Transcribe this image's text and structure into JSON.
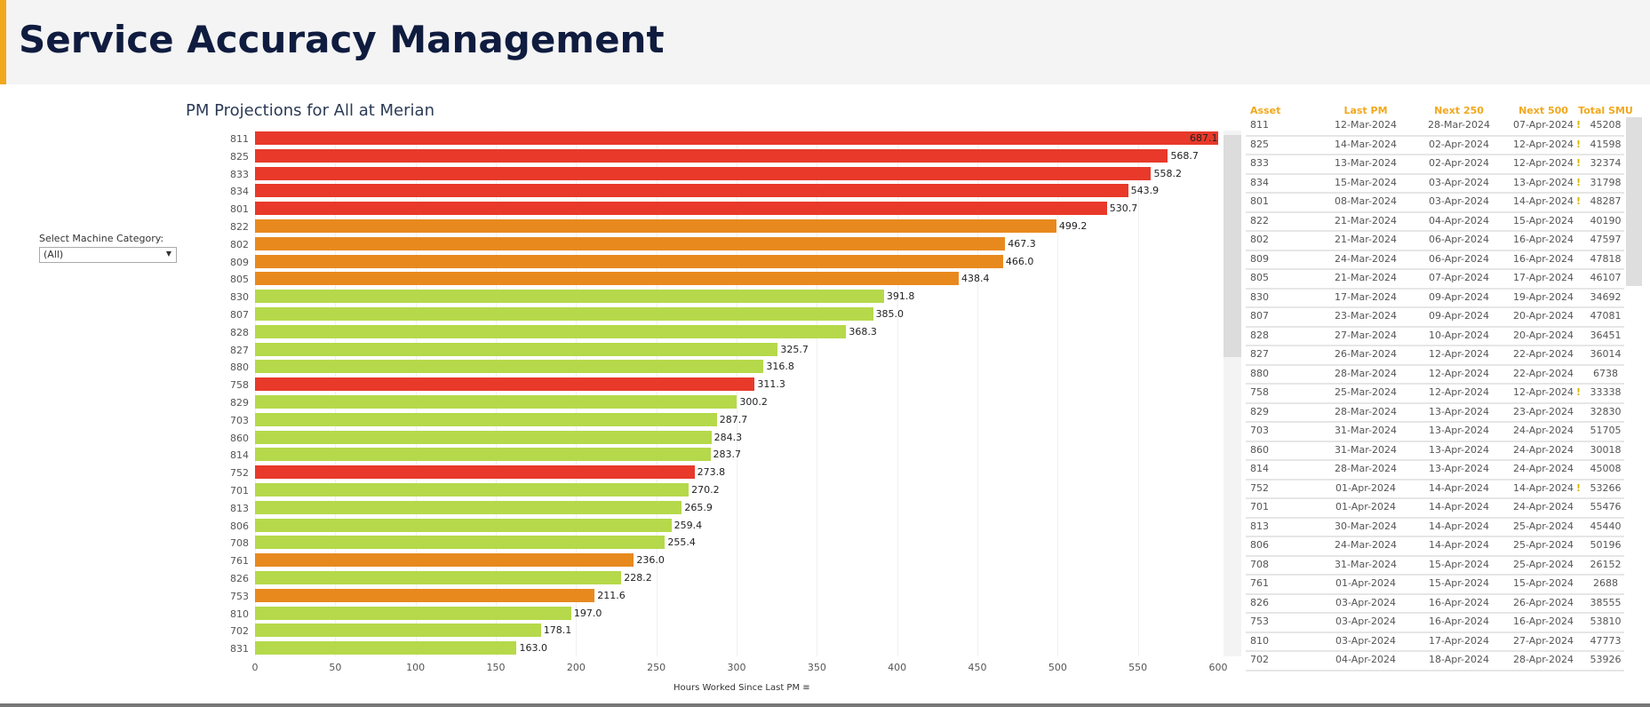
{
  "header": {
    "title": "Service Accuracy Management",
    "accent": "#f2a81d"
  },
  "filter": {
    "label": "Select Machine Category:",
    "value": "(All)"
  },
  "chart_data": {
    "type": "bar",
    "orientation": "horizontal",
    "title": "PM Projections for All at Merian",
    "xlabel": "Hours Worked Since Last PM",
    "xlim": [
      0,
      600
    ],
    "xticks": [
      "0",
      "50",
      "100",
      "150",
      "200",
      "250",
      "300",
      "350",
      "400",
      "450",
      "500",
      "550",
      "600"
    ],
    "colors": {
      "red": "#e8392a",
      "orange": "#e8891e",
      "green": "#b5d94a"
    },
    "categories": [
      "811",
      "825",
      "833",
      "834",
      "801",
      "822",
      "802",
      "809",
      "805",
      "830",
      "807",
      "828",
      "827",
      "880",
      "758",
      "829",
      "703",
      "860",
      "814",
      "752",
      "701",
      "813",
      "806",
      "708",
      "761",
      "826",
      "753",
      "810",
      "702",
      "831"
    ],
    "values": [
      687.1,
      568.7,
      558.2,
      543.9,
      530.7,
      499.2,
      467.3,
      466.0,
      438.4,
      391.8,
      385.0,
      368.3,
      325.7,
      316.8,
      311.3,
      300.2,
      287.7,
      284.3,
      283.7,
      273.8,
      270.2,
      265.9,
      259.4,
      255.4,
      236.0,
      228.2,
      211.6,
      197.0,
      178.1,
      163.0
    ],
    "value_labels": [
      "687.1",
      "568.7",
      "558.2",
      "543.9",
      "530.7",
      "499.2",
      "467.3",
      "466.0",
      "438.4",
      "391.8",
      "385.0",
      "368.3",
      "325.7",
      "316.8",
      "311.3",
      "300.2",
      "287.7",
      "284.3",
      "283.7",
      "273.8",
      "270.2",
      "265.9",
      "259.4",
      "255.4",
      "236.0",
      "228.2",
      "211.6",
      "197.0",
      "178.1",
      "163.0"
    ],
    "bar_colors": [
      "red",
      "red",
      "red",
      "red",
      "red",
      "orange",
      "orange",
      "orange",
      "orange",
      "green",
      "green",
      "green",
      "green",
      "green",
      "red",
      "green",
      "green",
      "green",
      "green",
      "red",
      "green",
      "green",
      "green",
      "green",
      "orange",
      "green",
      "orange",
      "green",
      "green",
      "green"
    ]
  },
  "table": {
    "headers": [
      "Asset",
      "Last PM",
      "Next 250",
      "Next 500",
      "Total SMU"
    ],
    "warning_icon": "exclamation-icon",
    "rows": [
      {
        "asset": "811",
        "last": "12-Mar-2024",
        "n250": "28-Mar-2024",
        "n500": "07-Apr-2024",
        "smu": "45208",
        "warn": "!"
      },
      {
        "asset": "825",
        "last": "14-Mar-2024",
        "n250": "02-Apr-2024",
        "n500": "12-Apr-2024",
        "smu": "41598",
        "warn": "!"
      },
      {
        "asset": "833",
        "last": "13-Mar-2024",
        "n250": "02-Apr-2024",
        "n500": "12-Apr-2024",
        "smu": "32374",
        "warn": "!"
      },
      {
        "asset": "834",
        "last": "15-Mar-2024",
        "n250": "03-Apr-2024",
        "n500": "13-Apr-2024",
        "smu": "31798",
        "warn": "!"
      },
      {
        "asset": "801",
        "last": "08-Mar-2024",
        "n250": "03-Apr-2024",
        "n500": "14-Apr-2024",
        "smu": "48287",
        "warn": "!"
      },
      {
        "asset": "822",
        "last": "21-Mar-2024",
        "n250": "04-Apr-2024",
        "n500": "15-Apr-2024",
        "smu": "40190"
      },
      {
        "asset": "802",
        "last": "21-Mar-2024",
        "n250": "06-Apr-2024",
        "n500": "16-Apr-2024",
        "smu": "47597"
      },
      {
        "asset": "809",
        "last": "24-Mar-2024",
        "n250": "06-Apr-2024",
        "n500": "16-Apr-2024",
        "smu": "47818"
      },
      {
        "asset": "805",
        "last": "21-Mar-2024",
        "n250": "07-Apr-2024",
        "n500": "17-Apr-2024",
        "smu": "46107"
      },
      {
        "asset": "830",
        "last": "17-Mar-2024",
        "n250": "09-Apr-2024",
        "n500": "19-Apr-2024",
        "smu": "34692"
      },
      {
        "asset": "807",
        "last": "23-Mar-2024",
        "n250": "09-Apr-2024",
        "n500": "20-Apr-2024",
        "smu": "47081"
      },
      {
        "asset": "828",
        "last": "27-Mar-2024",
        "n250": "10-Apr-2024",
        "n500": "20-Apr-2024",
        "smu": "36451"
      },
      {
        "asset": "827",
        "last": "26-Mar-2024",
        "n250": "12-Apr-2024",
        "n500": "22-Apr-2024",
        "smu": "36014"
      },
      {
        "asset": "880",
        "last": "28-Mar-2024",
        "n250": "12-Apr-2024",
        "n500": "22-Apr-2024",
        "smu": "6738"
      },
      {
        "asset": "758",
        "last": "25-Mar-2024",
        "n250": "12-Apr-2024",
        "n500": "12-Apr-2024",
        "smu": "33338",
        "warn": "!"
      },
      {
        "asset": "829",
        "last": "28-Mar-2024",
        "n250": "13-Apr-2024",
        "n500": "23-Apr-2024",
        "smu": "32830"
      },
      {
        "asset": "703",
        "last": "31-Mar-2024",
        "n250": "13-Apr-2024",
        "n500": "24-Apr-2024",
        "smu": "51705"
      },
      {
        "asset": "860",
        "last": "31-Mar-2024",
        "n250": "13-Apr-2024",
        "n500": "24-Apr-2024",
        "smu": "30018"
      },
      {
        "asset": "814",
        "last": "28-Mar-2024",
        "n250": "13-Apr-2024",
        "n500": "24-Apr-2024",
        "smu": "45008"
      },
      {
        "asset": "752",
        "last": "01-Apr-2024",
        "n250": "14-Apr-2024",
        "n500": "14-Apr-2024",
        "smu": "53266",
        "warn": "!"
      },
      {
        "asset": "701",
        "last": "01-Apr-2024",
        "n250": "14-Apr-2024",
        "n500": "24-Apr-2024",
        "smu": "55476"
      },
      {
        "asset": "813",
        "last": "30-Mar-2024",
        "n250": "14-Apr-2024",
        "n500": "25-Apr-2024",
        "smu": "45440"
      },
      {
        "asset": "806",
        "last": "24-Mar-2024",
        "n250": "14-Apr-2024",
        "n500": "25-Apr-2024",
        "smu": "50196"
      },
      {
        "asset": "708",
        "last": "31-Mar-2024",
        "n250": "15-Apr-2024",
        "n500": "25-Apr-2024",
        "smu": "26152"
      },
      {
        "asset": "761",
        "last": "01-Apr-2024",
        "n250": "15-Apr-2024",
        "n500": "15-Apr-2024",
        "smu": "2688"
      },
      {
        "asset": "826",
        "last": "03-Apr-2024",
        "n250": "16-Apr-2024",
        "n500": "26-Apr-2024",
        "smu": "38555"
      },
      {
        "asset": "753",
        "last": "03-Apr-2024",
        "n250": "16-Apr-2024",
        "n500": "16-Apr-2024",
        "smu": "53810"
      },
      {
        "asset": "810",
        "last": "03-Apr-2024",
        "n250": "17-Apr-2024",
        "n500": "27-Apr-2024",
        "smu": "47773"
      },
      {
        "asset": "702",
        "last": "04-Apr-2024",
        "n250": "18-Apr-2024",
        "n500": "28-Apr-2024",
        "smu": "53926"
      }
    ]
  }
}
